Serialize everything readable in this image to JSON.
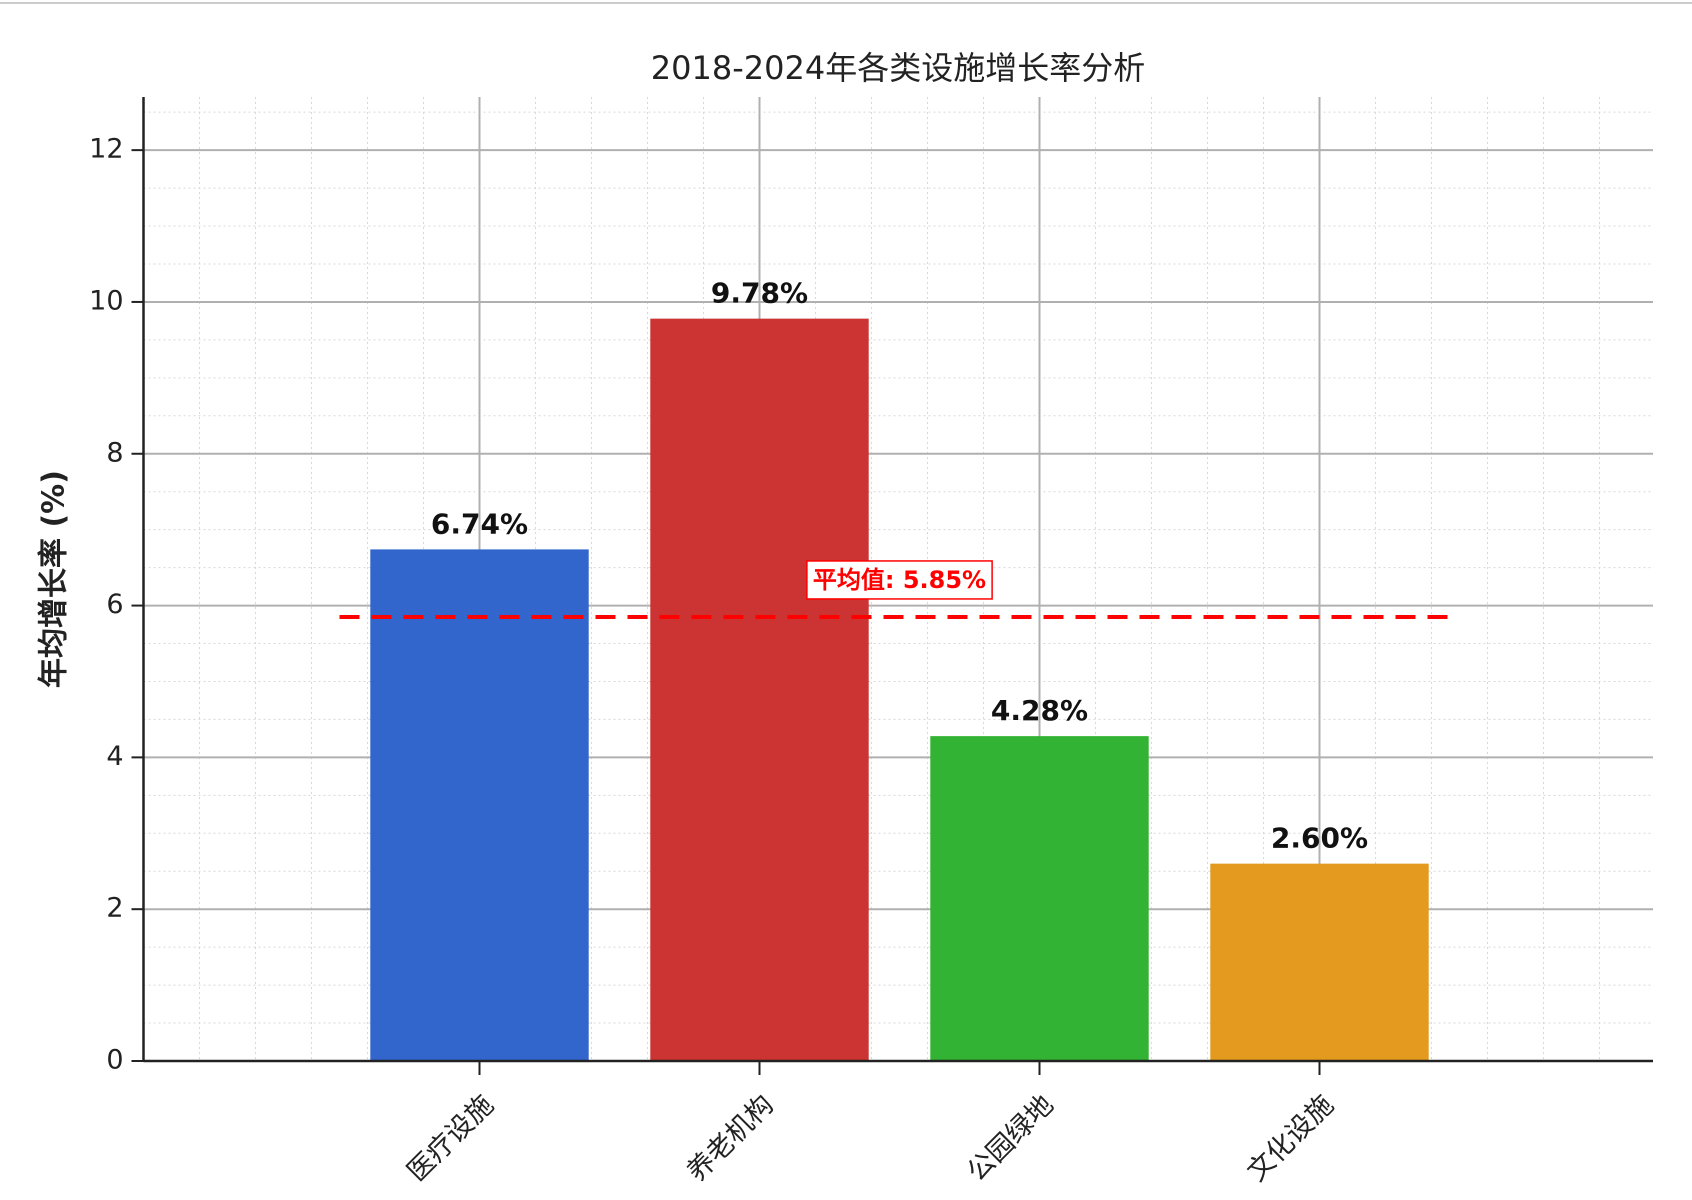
{
  "chart_data": {
    "type": "bar",
    "title": "2018-2024年各类设施增长率分析",
    "y_label": "年均增长率 (%)",
    "categories": [
      "医疗设施",
      "养老机构",
      "公园绿地",
      "文化设施"
    ],
    "values": [
      6.74,
      9.78,
      4.28,
      2.6
    ],
    "value_labels": [
      "6.74%",
      "9.78%",
      "4.28%",
      "2.60%"
    ],
    "colors": [
      "#3366cc",
      "#cc3333",
      "#33b333",
      "#e39a1e"
    ],
    "ylim": [
      0,
      12.7
    ],
    "yticks": [
      0,
      2,
      4,
      6,
      8,
      10,
      12
    ],
    "grid": true,
    "reference_line": {
      "value": 5.85,
      "label": "平均值: 5.85%",
      "color": "#ff0000"
    }
  }
}
